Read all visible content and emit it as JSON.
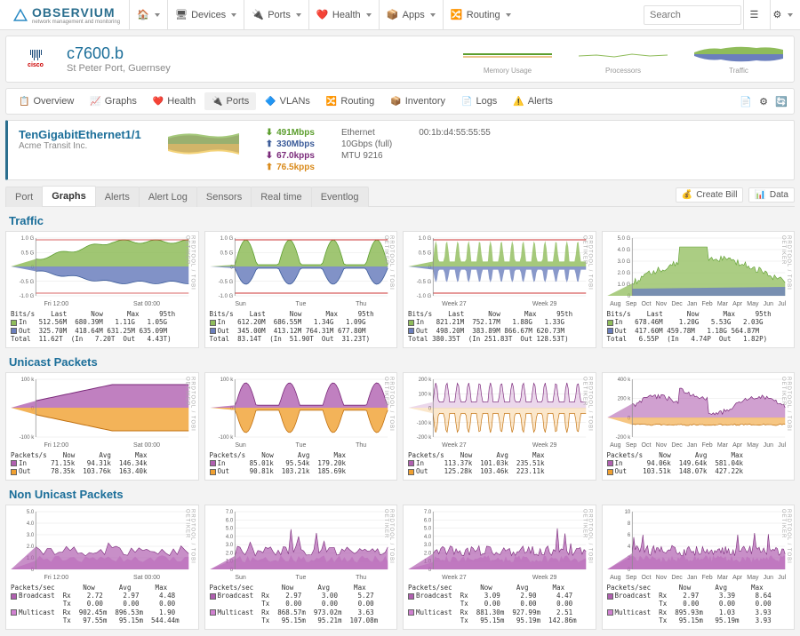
{
  "brand": {
    "name": "OBSERVIUM",
    "tagline": "network management and monitoring"
  },
  "nav": {
    "items": [
      {
        "label": "",
        "icon": "home"
      },
      {
        "label": "Devices",
        "icon": "devices"
      },
      {
        "label": "Ports",
        "icon": "ports"
      },
      {
        "label": "Health",
        "icon": "health"
      },
      {
        "label": "Apps",
        "icon": "apps"
      },
      {
        "label": "Routing",
        "icon": "routing"
      }
    ],
    "search_placeholder": "Search"
  },
  "device": {
    "vendor": "cisco",
    "name": "c7600.b",
    "location": "St Peter Port, Guernsey",
    "sparks": [
      {
        "label": "Memory Usage"
      },
      {
        "label": "Processors"
      },
      {
        "label": "Traffic"
      }
    ]
  },
  "subtabs": [
    {
      "label": "Overview",
      "icon": "overview"
    },
    {
      "label": "Graphs",
      "icon": "graphs"
    },
    {
      "label": "Health",
      "icon": "health"
    },
    {
      "label": "Ports",
      "icon": "ports",
      "active": true
    },
    {
      "label": "VLANs",
      "icon": "vlans"
    },
    {
      "label": "Routing",
      "icon": "routing"
    },
    {
      "label": "Inventory",
      "icon": "inventory"
    },
    {
      "label": "Logs",
      "icon": "logs"
    },
    {
      "label": "Alerts",
      "icon": "alerts"
    }
  ],
  "port": {
    "name": "TenGigabitEthernet1/1",
    "customer": "Acme Transit Inc.",
    "rates": [
      {
        "value": "491Mbps",
        "color": "#5c9e2e",
        "sym": "⬇"
      },
      {
        "value": "330Mbps",
        "color": "#3b5b99",
        "sym": "⬆"
      },
      {
        "value": "67.0kpps",
        "color": "#7a2a7a",
        "sym": "⬇"
      },
      {
        "value": "76.5kpps",
        "color": "#d98a1a",
        "sym": "⬆"
      }
    ],
    "meta": {
      "type": "Ethernet",
      "speed": "10Gbps (full)",
      "mtu": "MTU 9216",
      "mac": "00:1b:d4:55:55:55"
    }
  },
  "ptabs": [
    "Port",
    "Graphs",
    "Alerts",
    "Alert Log",
    "Sensors",
    "Real time",
    "Eventlog"
  ],
  "ptab_active": 1,
  "actions": {
    "bill": "Create Bill",
    "data": "Data"
  },
  "charts": {
    "watermark": "RRDTOOL / TOBI OETIKER",
    "colors": {
      "in": "#8fbc5a",
      "out": "#6b7fbd",
      "in_stroke": "#5c9e2e",
      "out_stroke": "#3b5b99",
      "pkt_in": "#b060b0",
      "pkt_out": "#f0a030",
      "pkt_in_stroke": "#7a2a7a",
      "pkt_out_stroke": "#c07010",
      "bcast": "#b060b0",
      "mcast": "#d080d0",
      "max_line": "#c33",
      "grid": "#e5e5e5",
      "axis": "#888",
      "bg": "#ffffff"
    },
    "traffic": {
      "title": "Traffic",
      "yscale": {
        "min": -1.0,
        "max": 1.0,
        "unit": "G",
        "ticks": [
          "1.0 G",
          "0.5 G",
          "0",
          "-0.5 G",
          "-1.0 G"
        ]
      },
      "panels": [
        {
          "xticks": [
            "Fri 12:00",
            "Sat 00:00"
          ],
          "stats": "Bits/s    Last      Now      Max     95th\n■ In   512.56M  680.39M   1.11G   1.05G\n■ Out  325.70M  418.64M 631.25M 635.09M\nTotal  11.62T  (In   7.20T  Out   4.43T)",
          "shape": "day_traffic"
        },
        {
          "xticks": [
            "Sun",
            "Tue",
            "Thu"
          ],
          "stats": "Bits/s    Last      Now      Max     95th\n■ In   612.20M  686.55M   1.34G   1.09G\n■ Out  345.00M  413.12M 764.31M 677.80M\nTotal  83.14T  (In  51.90T  Out  31.23T)",
          "shape": "week_traffic"
        },
        {
          "xticks": [
            "Week 27",
            "Week 29"
          ],
          "stats": "Bits/s    Last      Now      Max     95th\n■ In   821.21M  752.17M   1.88G   1.33G\n■ Out  498.20M  383.89M 866.67M 620.73M\nTotal 380.35T  (In 251.83T  Out 128.53T)",
          "shape": "month_traffic"
        },
        {
          "xticks": [
            "Aug",
            "Sep",
            "Oct",
            "Nov",
            "Dec",
            "Jan",
            "Feb",
            "Mar",
            "Apr",
            "May",
            "Jun",
            "Jul"
          ],
          "stats": "Bits/s    Last      Now      Max     95th\n■ In   678.46M    1.20G   5.53G   2.03G\n■ Out  417.60M 459.78M   1.18G 564.87M\nTotal   6.55P  (In   4.74P  Out   1.82P)",
          "yscale_override": {
            "max": 5.0,
            "ticks": [
              "5.0 G",
              "4.0 G",
              "3.0 G",
              "2.0 G",
              "1.0 G",
              "0"
            ]
          },
          "shape": "year_traffic"
        }
      ]
    },
    "unicast": {
      "title": "Unicast Packets",
      "yscale": {
        "min": -100,
        "max": 100,
        "unit": "k",
        "ticks": [
          "100 k",
          "0",
          "-100 k"
        ]
      },
      "panels": [
        {
          "xticks": [
            "Fri 12:00",
            "Sat 00:00"
          ],
          "stats": "Packets/s    Now      Avg      Max\n■ In      71.15k   94.31k  146.34k\n■ Out     78.35k  103.76k  163.40k",
          "shape": "day_pkts"
        },
        {
          "xticks": [
            "Sun",
            "Tue",
            "Thu"
          ],
          "stats": "Packets/s    Now      Avg      Max\n■ In      85.01k   95.54k  179.20k\n■ Out     90.81k  103.21k  185.69k",
          "shape": "week_pkts"
        },
        {
          "xticks": [
            "Week 27",
            "Week 29"
          ],
          "yscale_override": {
            "min": -200,
            "max": 200,
            "ticks": [
              "200 k",
              "100 k",
              "0",
              "-100 k",
              "-200 k"
            ]
          },
          "stats": "Packets/s    Now      Avg      Max\n■ In     113.37k  101.03k  235.51k\n■ Out    125.28k  103.46k  223.11k",
          "shape": "month_pkts"
        },
        {
          "xticks": [
            "Aug",
            "Sep",
            "Oct",
            "Nov",
            "Dec",
            "Jan",
            "Feb",
            "Mar",
            "Apr",
            "May",
            "Jun",
            "Jul"
          ],
          "yscale_override": {
            "min": -200,
            "max": 400,
            "ticks": [
              "400 k",
              "200 k",
              "0",
              "-200 k"
            ]
          },
          "stats": "Packets/s    Now      Avg      Max\n■ In      94.06k  149.64k  581.04k\n■ Out    103.51k  148.07k  427.22k",
          "shape": "year_pkts"
        }
      ]
    },
    "nonunicast": {
      "title": "Non Unicast Packets",
      "yscale": {
        "min": 0,
        "max": 5,
        "ticks": [
          "5.0",
          "4.0",
          "3.0",
          "2.0",
          "1.0",
          "0"
        ]
      },
      "panels": [
        {
          "xticks": [
            "Fri 12:00",
            "Sat 00:00"
          ],
          "stats": "Packets/sec       Now      Avg      Max\n■ Broadcast  Rx    2.72     2.97     4.48\n             Tx    0.00     0.00     0.00\n■ Multicast  Rx  902.45m  896.53m    1.90\n             Tx   97.55m   95.15m  544.44m",
          "shape": "day_nu"
        },
        {
          "xticks": [
            "Sun",
            "Tue",
            "Thu"
          ],
          "yscale_override": {
            "max": 7,
            "ticks": [
              "7.0",
              "6.0",
              "5.0",
              "4.0",
              "3.0",
              "2.0",
              "1.0",
              "0"
            ]
          },
          "stats": "Packets/sec       Now      Avg      Max\n■ Broadcast  Rx    2.97     3.00     5.27\n             Tx    0.00     0.00     0.00\n■ Multicast  Rx  868.57m  973.02m    3.63\n             Tx   95.15m   95.21m  107.08m",
          "shape": "week_nu"
        },
        {
          "xticks": [
            "Week 27",
            "Week 29"
          ],
          "yscale_override": {
            "max": 7,
            "ticks": [
              "7.0",
              "6.0",
              "5.0",
              "4.0",
              "3.0",
              "2.0",
              "1.0",
              "0"
            ]
          },
          "stats": "Packets/sec       Now      Avg      Max\n■ Broadcast  Rx    3.09     2.90     4.47\n             Tx    0.00     0.00     0.00\n■ Multicast  Rx  881.30m  927.99m    2.51\n             Tx   95.15m   95.19m  142.86m",
          "shape": "month_nu"
        },
        {
          "xticks": [
            "Aug",
            "Sep",
            "Oct",
            "Nov",
            "Dec",
            "Jan",
            "Feb",
            "Mar",
            "Apr",
            "May",
            "Jun",
            "Jul"
          ],
          "yscale_override": {
            "max": 10,
            "ticks": [
              "10",
              "8",
              "6",
              "4",
              "2",
              "0"
            ]
          },
          "stats": "Packets/sec       Now      Avg      Max\n■ Broadcast  Rx    2.97     3.39     8.64\n             Tx    0.00     0.00     0.00\n■ Multicast  Rx  895.93m    1.03     3.93\n             Tx   95.15m   95.19m    3.93",
          "shape": "year_nu"
        }
      ]
    }
  }
}
